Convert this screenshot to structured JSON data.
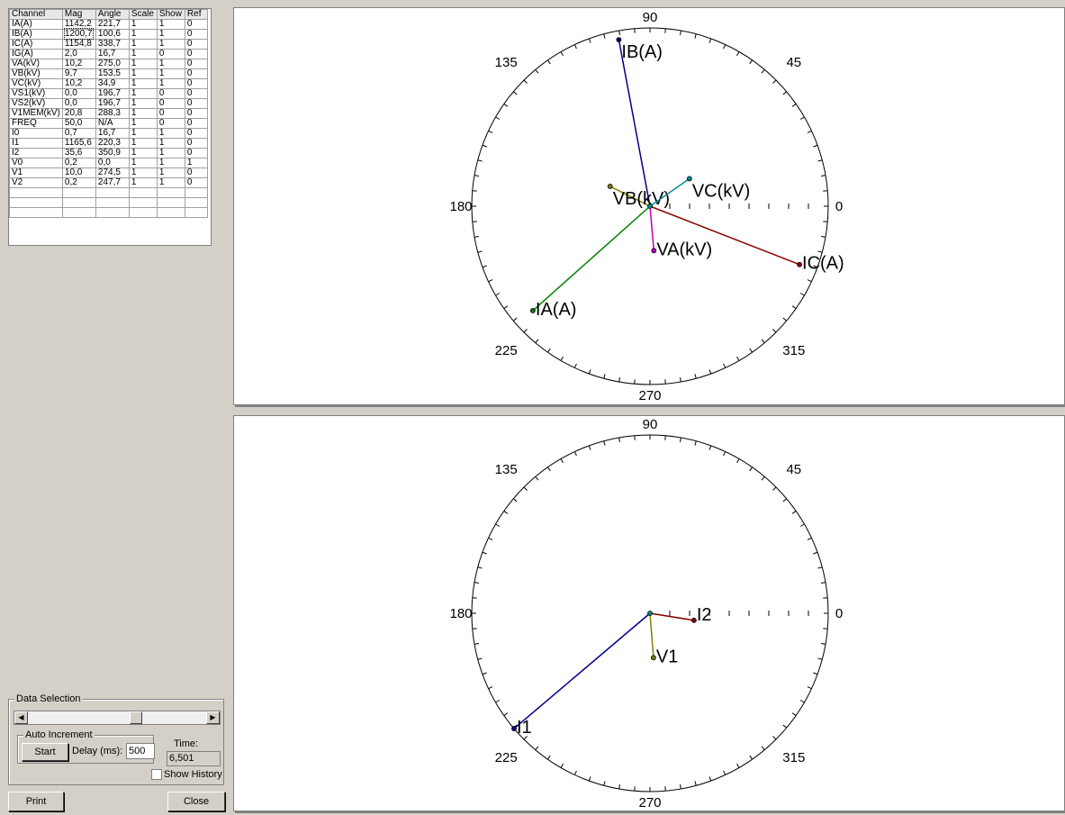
{
  "table": {
    "headers": [
      "Channel",
      "Mag",
      "Angle",
      "Scale",
      "Show",
      "Ref"
    ],
    "rows": [
      [
        "IA(A)",
        "1142,2",
        "221,7",
        "1",
        "1",
        "0"
      ],
      [
        "IB(A)",
        "1200,7",
        "100,6",
        "1",
        "1",
        "0"
      ],
      [
        "IC(A)",
        "1154,8",
        "338,7",
        "1",
        "1",
        "0"
      ],
      [
        "IG(A)",
        "2,0",
        "16,7",
        "1",
        "0",
        "0"
      ],
      [
        "VA(kV)",
        "10,2",
        "275,0",
        "1",
        "1",
        "0"
      ],
      [
        "VB(kV)",
        "9,7",
        "153,5",
        "1",
        "1",
        "0"
      ],
      [
        "VC(kV)",
        "10,2",
        "34,9",
        "1",
        "1",
        "0"
      ],
      [
        "VS1(kV)",
        "0,0",
        "196,7",
        "1",
        "0",
        "0"
      ],
      [
        "VS2(kV)",
        "0,0",
        "196,7",
        "1",
        "0",
        "0"
      ],
      [
        "V1MEM(kV)",
        "20,8",
        "288,3",
        "1",
        "0",
        "0"
      ],
      [
        "FREQ",
        "50,0",
        "N/A",
        "1",
        "0",
        "0"
      ],
      [
        "I0",
        "0,7",
        "16,7",
        "1",
        "1",
        "0"
      ],
      [
        "I1",
        "1165,6",
        "220,3",
        "1",
        "1",
        "0"
      ],
      [
        "I2",
        "35,6",
        "350,9",
        "1",
        "1",
        "0"
      ],
      [
        "V0",
        "0,2",
        "0,0",
        "1",
        "1",
        "1"
      ],
      [
        "V1",
        "10,0",
        "274,5",
        "1",
        "1",
        "0"
      ],
      [
        "V2",
        "0,2",
        "247,7",
        "1",
        "1",
        "0"
      ]
    ]
  },
  "data_selection": {
    "title": "Data Selection",
    "auto_increment_title": "Auto Increment",
    "start_label": "Start",
    "delay_label": "Delay (ms):",
    "delay_value": "500",
    "time_label": "Time:",
    "time_value": "6,501",
    "show_history_label": "Show History"
  },
  "buttons": {
    "print": "Print",
    "close": "Close"
  },
  "plot1": {
    "angle_labels": [
      "90",
      "45",
      "0",
      "315",
      "270",
      "225",
      "180",
      "135"
    ],
    "phasors": [
      {
        "label": "IA(A)",
        "angle": 221.7,
        "rel": 0.88,
        "color": "#008000"
      },
      {
        "label": "IB(A)",
        "angle": 100.6,
        "rel": 0.95,
        "color": "#00008b"
      },
      {
        "label": "IC(A)",
        "angle": 338.7,
        "rel": 0.9,
        "color": "#8b0000"
      },
      {
        "label": "VA(kV)",
        "angle": 275.0,
        "rel": 0.25,
        "color": "#c000c0"
      },
      {
        "label": "VB(kV)",
        "angle": 153.5,
        "rel": 0.25,
        "color": "#808000"
      },
      {
        "label": "VC(kV)",
        "angle": 34.9,
        "rel": 0.27,
        "color": "#008b8b"
      }
    ]
  },
  "plot2": {
    "angle_labels": [
      "90",
      "45",
      "0",
      "315",
      "270",
      "225",
      "180",
      "135"
    ],
    "phasors": [
      {
        "label": "I1",
        "angle": 220.3,
        "rel": 1.0,
        "color": "#00008b"
      },
      {
        "label": "I2",
        "angle": 350.9,
        "rel": 0.25,
        "color": "#8b0000"
      },
      {
        "label": "V1",
        "angle": 274.5,
        "rel": 0.25,
        "color": "#808000"
      }
    ]
  }
}
